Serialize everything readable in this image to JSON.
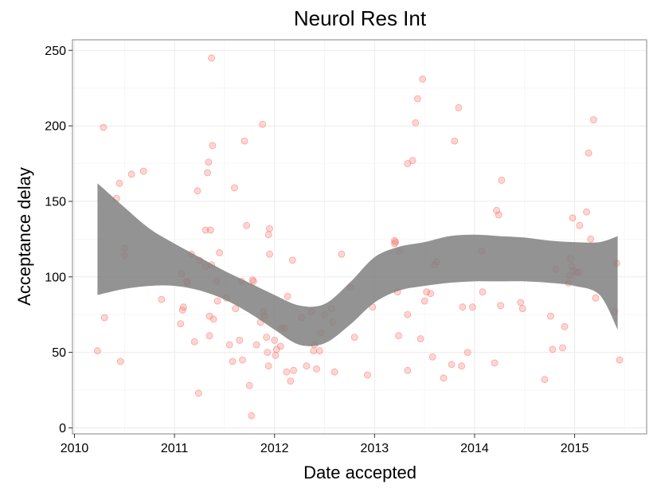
{
  "chart_data": {
    "type": "scatter",
    "title": "Neurol Res Int",
    "xlabel": "Date accepted",
    "ylabel": "Acceptance delay",
    "xlim": [
      2009.98,
      2015.72
    ],
    "ylim": [
      -4,
      257
    ],
    "x_ticks": [
      2010,
      2011,
      2012,
      2013,
      2014,
      2015
    ],
    "x_tick_labels": [
      "2010",
      "2011",
      "2012",
      "2013",
      "2014",
      "2015"
    ],
    "y_ticks": [
      0,
      50,
      100,
      150,
      200,
      250
    ],
    "y_tick_labels": [
      "0",
      "50",
      "100",
      "150",
      "200",
      "250"
    ],
    "grid": true,
    "colors": {
      "points": "#f8766d",
      "ribbon": "#808080",
      "panel_border": "#9a9a9a",
      "grid": "#ebebeb"
    },
    "series": [
      {
        "points": [
          [
            2010.23,
            51
          ],
          [
            2010.29,
            199
          ],
          [
            2010.3,
            73
          ],
          [
            2010.42,
            152
          ],
          [
            2010.45,
            162
          ],
          [
            2010.46,
            44
          ],
          [
            2010.5,
            119
          ],
          [
            2010.5,
            114
          ],
          [
            2010.57,
            168
          ],
          [
            2010.69,
            170
          ],
          [
            2010.87,
            85
          ],
          [
            2011.06,
            69
          ],
          [
            2011.07,
            102
          ],
          [
            2011.08,
            78
          ],
          [
            2011.09,
            80
          ],
          [
            2011.12,
            97
          ],
          [
            2011.13,
            96
          ],
          [
            2011.17,
            115
          ],
          [
            2011.2,
            57
          ],
          [
            2011.23,
            157
          ],
          [
            2011.24,
            23
          ],
          [
            2011.25,
            111
          ],
          [
            2011.31,
            107
          ],
          [
            2011.31,
            131
          ],
          [
            2011.33,
            169
          ],
          [
            2011.34,
            176
          ],
          [
            2011.35,
            61
          ],
          [
            2011.35,
            74
          ],
          [
            2011.37,
            245
          ],
          [
            2011.38,
            187
          ],
          [
            2011.39,
            72
          ],
          [
            2011.36,
            131
          ],
          [
            2011.37,
            108
          ],
          [
            2011.42,
            97
          ],
          [
            2011.43,
            84
          ],
          [
            2011.45,
            116
          ],
          [
            2011.52,
            86
          ],
          [
            2011.55,
            55
          ],
          [
            2011.58,
            44
          ],
          [
            2011.6,
            159
          ],
          [
            2011.61,
            79
          ],
          [
            2011.65,
            58
          ],
          [
            2011.67,
            97
          ],
          [
            2011.68,
            45
          ],
          [
            2011.7,
            190
          ],
          [
            2011.72,
            134
          ],
          [
            2011.75,
            28
          ],
          [
            2011.77,
            8
          ],
          [
            2011.78,
            98
          ],
          [
            2011.79,
            97
          ],
          [
            2011.82,
            55
          ],
          [
            2011.86,
            70
          ],
          [
            2011.88,
            201
          ],
          [
            2011.89,
            77
          ],
          [
            2011.9,
            74
          ],
          [
            2011.92,
            60
          ],
          [
            2011.93,
            50
          ],
          [
            2011.94,
            41
          ],
          [
            2011.94,
            128
          ],
          [
            2011.95,
            132
          ],
          [
            2011.95,
            115
          ],
          [
            2012.0,
            58
          ],
          [
            2012.01,
            48
          ],
          [
            2012.02,
            52
          ],
          [
            2012.06,
            54
          ],
          [
            2012.07,
            66
          ],
          [
            2012.1,
            66
          ],
          [
            2012.12,
            37
          ],
          [
            2012.13,
            87
          ],
          [
            2012.16,
            31
          ],
          [
            2012.18,
            111
          ],
          [
            2012.19,
            38
          ],
          [
            2012.27,
            73
          ],
          [
            2012.32,
            41
          ],
          [
            2012.37,
            77
          ],
          [
            2012.39,
            51
          ],
          [
            2012.4,
            55
          ],
          [
            2012.42,
            39
          ],
          [
            2012.45,
            51
          ],
          [
            2012.46,
            63
          ],
          [
            2012.5,
            75
          ],
          [
            2012.57,
            79
          ],
          [
            2012.58,
            70
          ],
          [
            2012.6,
            37
          ],
          [
            2012.67,
            115
          ],
          [
            2012.76,
            93
          ],
          [
            2012.8,
            60
          ],
          [
            2012.93,
            35
          ],
          [
            2012.98,
            80
          ],
          [
            2013.2,
            124
          ],
          [
            2013.2,
            122
          ],
          [
            2013.21,
            123
          ],
          [
            2013.23,
            90
          ],
          [
            2013.24,
            61
          ],
          [
            2013.25,
            117
          ],
          [
            2013.33,
            38
          ],
          [
            2013.33,
            75
          ],
          [
            2013.33,
            175
          ],
          [
            2013.38,
            177
          ],
          [
            2013.41,
            202
          ],
          [
            2013.43,
            218
          ],
          [
            2013.46,
            59
          ],
          [
            2013.48,
            231
          ],
          [
            2013.5,
            84
          ],
          [
            2013.52,
            90
          ],
          [
            2013.56,
            89
          ],
          [
            2013.58,
            47
          ],
          [
            2013.6,
            108
          ],
          [
            2013.62,
            110
          ],
          [
            2013.69,
            33
          ],
          [
            2013.77,
            42
          ],
          [
            2013.8,
            190
          ],
          [
            2013.84,
            212
          ],
          [
            2013.87,
            41
          ],
          [
            2013.88,
            80
          ],
          [
            2013.93,
            50
          ],
          [
            2013.98,
            80
          ],
          [
            2014.07,
            117
          ],
          [
            2014.08,
            90
          ],
          [
            2014.2,
            43
          ],
          [
            2014.22,
            144
          ],
          [
            2014.24,
            141
          ],
          [
            2014.26,
            81
          ],
          [
            2014.27,
            164
          ],
          [
            2014.46,
            83
          ],
          [
            2014.48,
            79
          ],
          [
            2014.7,
            32
          ],
          [
            2014.76,
            74
          ],
          [
            2014.78,
            52
          ],
          [
            2014.81,
            105
          ],
          [
            2014.88,
            53
          ],
          [
            2014.9,
            67
          ],
          [
            2014.94,
            96
          ],
          [
            2014.95,
            101
          ],
          [
            2014.96,
            112
          ],
          [
            2014.97,
            107
          ],
          [
            2014.98,
            139
          ],
          [
            2014.99,
            104
          ],
          [
            2015.02,
            103
          ],
          [
            2015.04,
            103
          ],
          [
            2015.05,
            134
          ],
          [
            2015.12,
            143
          ],
          [
            2015.14,
            182
          ],
          [
            2015.16,
            125
          ],
          [
            2015.19,
            204
          ],
          [
            2015.21,
            86
          ],
          [
            2015.4,
            77
          ],
          [
            2015.42,
            109
          ],
          [
            2015.45,
            45
          ]
        ]
      }
    ],
    "smooth": {
      "x": [
        2010.23,
        2010.5,
        2010.75,
        2011.0,
        2011.25,
        2011.5,
        2011.75,
        2012.0,
        2012.25,
        2012.5,
        2012.75,
        2013.0,
        2013.25,
        2013.5,
        2013.75,
        2014.0,
        2014.25,
        2014.5,
        2014.75,
        2015.0,
        2015.25,
        2015.43
      ],
      "upper": [
        162,
        146,
        132,
        122,
        113,
        104,
        96,
        88,
        81,
        82,
        96,
        113,
        120,
        123,
        127,
        128,
        127,
        126,
        124,
        123,
        123,
        127
      ],
      "lower": [
        88,
        92,
        94,
        94,
        91,
        85,
        76,
        65,
        55,
        56,
        68,
        83,
        91,
        94,
        96,
        97,
        97,
        97,
        96,
        94,
        88,
        65
      ]
    }
  }
}
